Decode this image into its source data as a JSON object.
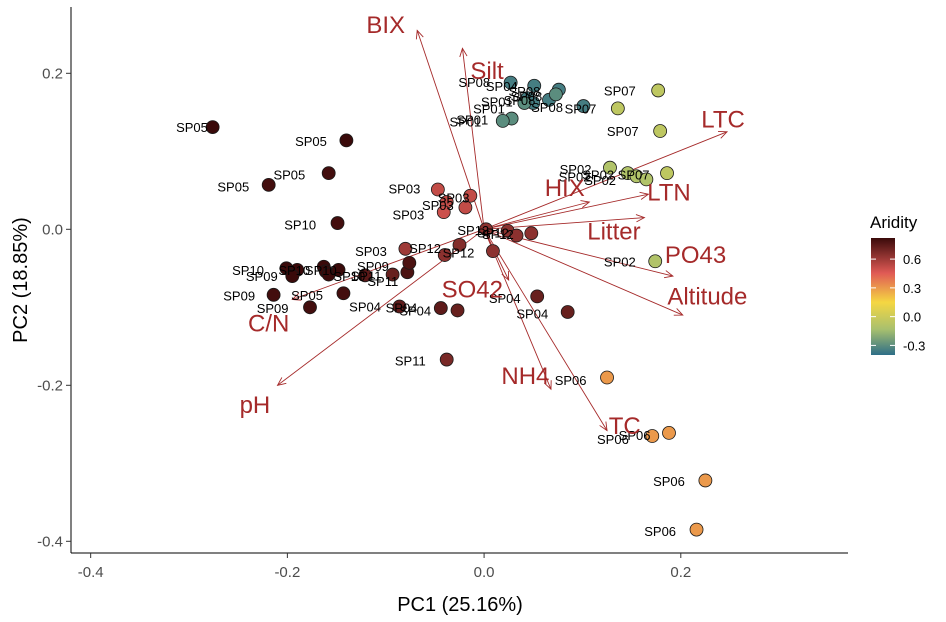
{
  "chart_data": {
    "type": "scatter",
    "subtype": "pca-biplot",
    "xlabel": "PC1 (25.16%)",
    "ylabel": "PC2 (18.85%)",
    "xlim": [
      -0.42,
      0.37
    ],
    "ylim": [
      -0.415,
      0.285
    ],
    "x_ticks": [
      -0.4,
      -0.2,
      0.0,
      0.2
    ],
    "x_tick_labels": [
      "-0.4",
      "-0.2",
      "0.0",
      "0.2"
    ],
    "y_ticks": [
      0.2,
      0.0,
      -0.2,
      -0.4
    ],
    "y_tick_labels": [
      "0.2",
      "0.0",
      "-0.2",
      "-0.4"
    ],
    "grid": false,
    "arrow_color": "#a52a2a",
    "legend": {
      "title": "Aridity",
      "placement": "right",
      "min": -0.4,
      "max": 0.82,
      "ticks": [
        0.6,
        0.3,
        0.0,
        -0.3
      ],
      "tick_labels": [
        "0.6",
        "0.3",
        "0.0",
        "-0.3"
      ],
      "gradient": [
        {
          "at": 0.0,
          "color": "#2e6e87"
        },
        {
          "at": 0.22,
          "color": "#a8c06e"
        },
        {
          "at": 0.45,
          "color": "#f5d742"
        },
        {
          "at": 0.7,
          "color": "#e05a55"
        },
        {
          "at": 1.0,
          "color": "#3a0a0a"
        }
      ]
    },
    "arrows": [
      {
        "name": "BIX",
        "x": -0.068,
        "y": 0.255,
        "label_x": -0.1,
        "label_y": 0.262
      },
      {
        "name": "Silt",
        "x": -0.022,
        "y": 0.232,
        "label_x": 0.003,
        "label_y": 0.203
      },
      {
        "name": "LTC",
        "x": 0.247,
        "y": 0.125,
        "label_x": 0.243,
        "label_y": 0.141
      },
      {
        "name": "HIX",
        "x": 0.107,
        "y": 0.035,
        "label_x": 0.082,
        "label_y": 0.053
      },
      {
        "name": "LTN",
        "x": 0.167,
        "y": 0.045,
        "label_x": 0.188,
        "label_y": 0.047
      },
      {
        "name": "Litter",
        "x": 0.163,
        "y": 0.015,
        "label_x": 0.132,
        "label_y": -0.003
      },
      {
        "name": "PO43",
        "x": 0.192,
        "y": -0.06,
        "label_x": 0.215,
        "label_y": -0.033
      },
      {
        "name": "Altitude",
        "x": 0.202,
        "y": -0.11,
        "label_x": 0.227,
        "label_y": -0.086
      },
      {
        "name": "SO42",
        "x": 0.025,
        "y": -0.065,
        "label_x": -0.012,
        "label_y": -0.077
      },
      {
        "name": "NH4",
        "x": 0.068,
        "y": -0.205,
        "label_x": 0.042,
        "label_y": -0.188
      },
      {
        "name": "TC",
        "x": 0.125,
        "y": -0.258,
        "label_x": 0.143,
        "label_y": -0.252
      },
      {
        "name": "C/N",
        "x": -0.195,
        "y": -0.09,
        "label_x": -0.219,
        "label_y": -0.121
      },
      {
        "name": "pH",
        "x": -0.21,
        "y": -0.2,
        "label_x": -0.233,
        "label_y": -0.225
      }
    ],
    "points": [
      {
        "label": "SP05",
        "x": -0.276,
        "y": 0.131,
        "aridity": 0.82
      },
      {
        "label": "SP05",
        "x": -0.14,
        "y": 0.114,
        "aridity": 0.82
      },
      {
        "label": "SP05",
        "x": -0.158,
        "y": 0.072,
        "aridity": 0.8
      },
      {
        "label": "SP05",
        "x": -0.219,
        "y": 0.057,
        "aridity": 0.8
      },
      {
        "label": "SP10",
        "x": -0.149,
        "y": 0.008,
        "aridity": 0.8
      },
      {
        "label": "SP10",
        "x": -0.201,
        "y": -0.05,
        "aridity": 0.82
      },
      {
        "label": "SP10",
        "x": -0.19,
        "y": -0.052,
        "aridity": 0.82
      },
      {
        "label": "SP10",
        "x": -0.163,
        "y": -0.048,
        "aridity": 0.82
      },
      {
        "label": "SP10",
        "x": -0.161,
        "y": -0.054,
        "aridity": 0.82
      },
      {
        "label": "SP10",
        "x": -0.158,
        "y": -0.058,
        "aridity": 0.82
      },
      {
        "label": "SP10",
        "x": -0.148,
        "y": -0.052,
        "aridity": 0.82
      },
      {
        "label": "SP10",
        "x": -0.195,
        "y": -0.06,
        "aridity": 0.82
      },
      {
        "label": "SP09",
        "x": -0.214,
        "y": -0.084,
        "aridity": 0.8
      },
      {
        "label": "SP09",
        "x": -0.177,
        "y": -0.1,
        "aridity": 0.8
      },
      {
        "label": "SP05",
        "x": -0.143,
        "y": -0.082,
        "aridity": 0.8
      },
      {
        "label": "SP09",
        "x": -0.078,
        "y": -0.055,
        "aridity": 0.78
      },
      {
        "label": "SP09",
        "x": -0.076,
        "y": -0.043,
        "aridity": 0.78
      },
      {
        "label": "SP01",
        "x": -0.093,
        "y": -0.058,
        "aridity": 0.72
      },
      {
        "label": "SP11",
        "x": -0.121,
        "y": -0.059,
        "aridity": 0.75
      },
      {
        "label": "SP03",
        "x": -0.08,
        "y": -0.025,
        "aridity": 0.6
      },
      {
        "label": "SP12",
        "x": -0.04,
        "y": -0.033,
        "aridity": 0.64
      },
      {
        "label": "SP12",
        "x": -0.025,
        "y": -0.02,
        "aridity": 0.66
      },
      {
        "label": "SP04",
        "x": -0.086,
        "y": -0.099,
        "aridity": 0.74
      },
      {
        "label": "SP04",
        "x": -0.044,
        "y": -0.101,
        "aridity": 0.74
      },
      {
        "label": "SP04",
        "x": -0.027,
        "y": -0.104,
        "aridity": 0.72
      },
      {
        "label": "SP04",
        "x": 0.054,
        "y": -0.086,
        "aridity": 0.72
      },
      {
        "label": "SP04",
        "x": 0.085,
        "y": -0.106,
        "aridity": 0.72
      },
      {
        "label": "SP11",
        "x": -0.038,
        "y": -0.167,
        "aridity": 0.68
      },
      {
        "label": "SP03",
        "x": -0.047,
        "y": 0.051,
        "aridity": 0.52
      },
      {
        "label": "SP03",
        "x": -0.014,
        "y": 0.043,
        "aridity": 0.52
      },
      {
        "label": "SP03",
        "x": -0.038,
        "y": 0.035,
        "aridity": 0.52
      },
      {
        "label": "SP03",
        "x": -0.019,
        "y": 0.028,
        "aridity": 0.52
      },
      {
        "label": "SP03",
        "x": -0.041,
        "y": 0.022,
        "aridity": 0.5
      },
      {
        "label": "SP12",
        "x": 0.002,
        "y": 0.0,
        "aridity": 0.64
      },
      {
        "label": "SP12",
        "x": 0.024,
        "y": -0.002,
        "aridity": 0.64
      },
      {
        "label": "SP12",
        "x": 0.033,
        "y": -0.008,
        "aridity": 0.64
      },
      {
        "label": "SP12",
        "x": 0.048,
        "y": -0.005,
        "aridity": 0.64
      },
      {
        "label": "SP12",
        "x": 0.009,
        "y": -0.028,
        "aridity": 0.64
      },
      {
        "label": "SP08",
        "x": 0.027,
        "y": 0.188,
        "aridity": -0.35
      },
      {
        "label": "SP08",
        "x": 0.051,
        "y": 0.184,
        "aridity": -0.35
      },
      {
        "label": "SP08",
        "x": 0.076,
        "y": 0.179,
        "aridity": -0.35
      },
      {
        "label": "SP08",
        "x": 0.044,
        "y": 0.168,
        "aridity": -0.35
      },
      {
        "label": "SP08",
        "x": 0.066,
        "y": 0.166,
        "aridity": -0.35
      },
      {
        "label": "SP08",
        "x": 0.05,
        "y": 0.162,
        "aridity": -0.35
      },
      {
        "label": "SP01",
        "x": 0.041,
        "y": 0.162,
        "aridity": -0.3
      },
      {
        "label": "SP01",
        "x": 0.028,
        "y": 0.142,
        "aridity": -0.3
      },
      {
        "label": "SP01",
        "x": 0.019,
        "y": 0.139,
        "aridity": -0.3
      },
      {
        "label": "SP01",
        "x": 0.073,
        "y": 0.173,
        "aridity": -0.3
      },
      {
        "label": "SP08",
        "x": 0.101,
        "y": 0.158,
        "aridity": -0.35
      },
      {
        "label": "SP07",
        "x": 0.177,
        "y": 0.178,
        "aridity": -0.05
      },
      {
        "label": "SP07",
        "x": 0.136,
        "y": 0.155,
        "aridity": -0.05
      },
      {
        "label": "SP07",
        "x": 0.179,
        "y": 0.126,
        "aridity": -0.05
      },
      {
        "label": "SP02",
        "x": 0.128,
        "y": 0.079,
        "aridity": -0.1
      },
      {
        "label": "SP02",
        "x": 0.146,
        "y": 0.072,
        "aridity": -0.1
      },
      {
        "label": "SP02",
        "x": 0.155,
        "y": 0.068,
        "aridity": -0.1
      },
      {
        "label": "SP02",
        "x": 0.165,
        "y": 0.064,
        "aridity": -0.1
      },
      {
        "label": "SP07",
        "x": 0.186,
        "y": 0.072,
        "aridity": -0.05
      },
      {
        "label": "SP02",
        "x": 0.174,
        "y": -0.041,
        "aridity": -0.1
      },
      {
        "label": "SP06",
        "x": 0.125,
        "y": -0.19,
        "aridity": 0.3
      },
      {
        "label": "SP06",
        "x": 0.188,
        "y": -0.261,
        "aridity": 0.3
      },
      {
        "label": "SP06",
        "x": 0.171,
        "y": -0.265,
        "aridity": 0.3
      },
      {
        "label": "SP06",
        "x": 0.225,
        "y": -0.322,
        "aridity": 0.3
      },
      {
        "label": "SP06",
        "x": 0.216,
        "y": -0.385,
        "aridity": 0.3
      }
    ],
    "point_labels": [
      {
        "text": "SP05",
        "x": -0.297,
        "y": 0.131
      },
      {
        "text": "SP05",
        "x": -0.176,
        "y": 0.113
      },
      {
        "text": "SP05",
        "x": -0.198,
        "y": 0.07
      },
      {
        "text": "SP05",
        "x": -0.255,
        "y": 0.055
      },
      {
        "text": "SP10",
        "x": -0.187,
        "y": 0.006
      },
      {
        "text": "SP10",
        "x": -0.24,
        "y": -0.052
      },
      {
        "text": "SP09",
        "x": -0.226,
        "y": -0.06
      },
      {
        "text": "SP09",
        "x": -0.249,
        "y": -0.085
      },
      {
        "text": "SP09",
        "x": -0.215,
        "y": -0.101
      },
      {
        "text": "SP05",
        "x": -0.18,
        "y": -0.084
      },
      {
        "text": "SP10",
        "x": -0.193,
        "y": -0.052
      },
      {
        "text": "SP10",
        "x": -0.166,
        "y": -0.052
      },
      {
        "text": "SP10",
        "x": -0.137,
        "y": -0.06
      },
      {
        "text": "SP03",
        "x": -0.115,
        "y": -0.028
      },
      {
        "text": "SP09",
        "x": -0.113,
        "y": -0.047
      },
      {
        "text": "SP11",
        "x": -0.12,
        "y": -0.059
      },
      {
        "text": "SP11",
        "x": -0.103,
        "y": -0.066
      },
      {
        "text": "SP04",
        "x": -0.121,
        "y": -0.099
      },
      {
        "text": "SP04",
        "x": -0.084,
        "y": -0.1
      },
      {
        "text": "SP04",
        "x": -0.07,
        "y": -0.104
      },
      {
        "text": "SP04",
        "x": 0.021,
        "y": -0.088
      },
      {
        "text": "SP04",
        "x": 0.049,
        "y": -0.108
      },
      {
        "text": "SP11",
        "x": -0.075,
        "y": -0.168
      },
      {
        "text": "SP12",
        "x": -0.06,
        "y": -0.024
      },
      {
        "text": "SP12",
        "x": -0.026,
        "y": -0.03
      },
      {
        "text": "SP12",
        "x": -0.011,
        "y": -0.001
      },
      {
        "text": "SP12",
        "x": 0.009,
        "y": -0.004
      },
      {
        "text": "SP12",
        "x": 0.014,
        "y": -0.006
      },
      {
        "text": "SP03",
        "x": -0.081,
        "y": 0.052
      },
      {
        "text": "SP03",
        "x": -0.031,
        "y": 0.041
      },
      {
        "text": "SP03",
        "x": -0.047,
        "y": 0.031
      },
      {
        "text": "SP03",
        "x": -0.077,
        "y": 0.019
      },
      {
        "text": "SP08",
        "x": -0.01,
        "y": 0.189
      },
      {
        "text": "SP04",
        "x": 0.018,
        "y": 0.184
      },
      {
        "text": "SP08",
        "x": 0.041,
        "y": 0.177
      },
      {
        "text": "SP08",
        "x": 0.043,
        "y": 0.171
      },
      {
        "text": "SP08",
        "x": 0.036,
        "y": 0.166
      },
      {
        "text": "SP01",
        "x": 0.013,
        "y": 0.164
      },
      {
        "text": "SP01",
        "x": 0.005,
        "y": 0.155
      },
      {
        "text": "SP08",
        "x": 0.064,
        "y": 0.157
      },
      {
        "text": "SP07",
        "x": 0.098,
        "y": 0.155
      },
      {
        "text": "SP01",
        "x": -0.012,
        "y": 0.141
      },
      {
        "text": "SP01",
        "x": -0.019,
        "y": 0.138
      },
      {
        "text": "SP07",
        "x": 0.138,
        "y": 0.178
      },
      {
        "text": "SP07",
        "x": 0.141,
        "y": 0.126
      },
      {
        "text": "SP02",
        "x": 0.093,
        "y": 0.077
      },
      {
        "text": "SP02",
        "x": 0.092,
        "y": 0.068
      },
      {
        "text": "SP02",
        "x": 0.116,
        "y": 0.07
      },
      {
        "text": "SP02",
        "x": 0.118,
        "y": 0.063
      },
      {
        "text": "SP07",
        "x": 0.152,
        "y": 0.07
      },
      {
        "text": "SP02",
        "x": 0.138,
        "y": -0.041
      },
      {
        "text": "SP06",
        "x": 0.088,
        "y": -0.193
      },
      {
        "text": "SP06",
        "x": 0.131,
        "y": -0.269
      },
      {
        "text": "SP06",
        "x": 0.153,
        "y": -0.264
      },
      {
        "text": "SP06",
        "x": 0.188,
        "y": -0.323
      },
      {
        "text": "SP06",
        "x": 0.179,
        "y": -0.387
      }
    ]
  }
}
